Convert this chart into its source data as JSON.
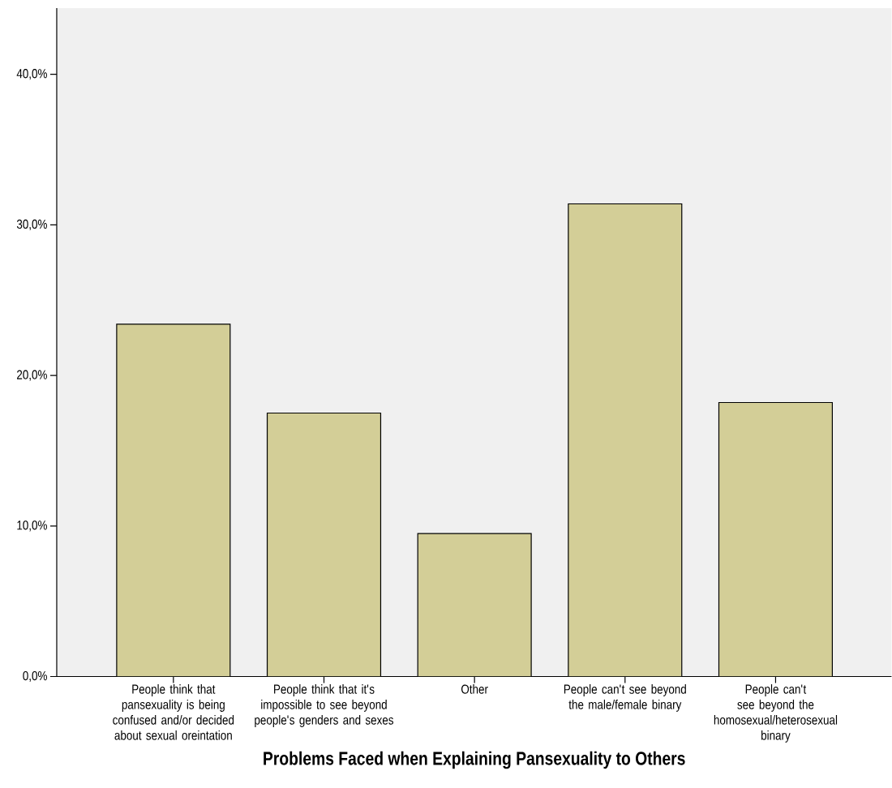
{
  "chart_data": {
    "type": "bar",
    "xlabel": "Problems Faced when Explaining Pansexuality to Others",
    "categories": [
      "People think that pansexuality is being confused and/or decided about sexual oreintation",
      "People think that it's impossible to see beyond people's genders and sexes",
      "Other",
      "People can't see beyond the male/female binary",
      "People can't see beyond the homosexual/heterosexual binary"
    ],
    "values": [
      23.4,
      17.5,
      9.5,
      31.4,
      18.2
    ],
    "color": "#d3ce97",
    "ylim": [
      0,
      44.4
    ],
    "yticks": [
      {
        "value": 0,
        "label": "0,0%"
      },
      {
        "value": 10,
        "label": "10,0%"
      },
      {
        "value": 20,
        "label": "20,0%"
      },
      {
        "value": 30,
        "label": "30,0%"
      },
      {
        "value": 40,
        "label": "40,0%"
      }
    ],
    "grid": false
  }
}
